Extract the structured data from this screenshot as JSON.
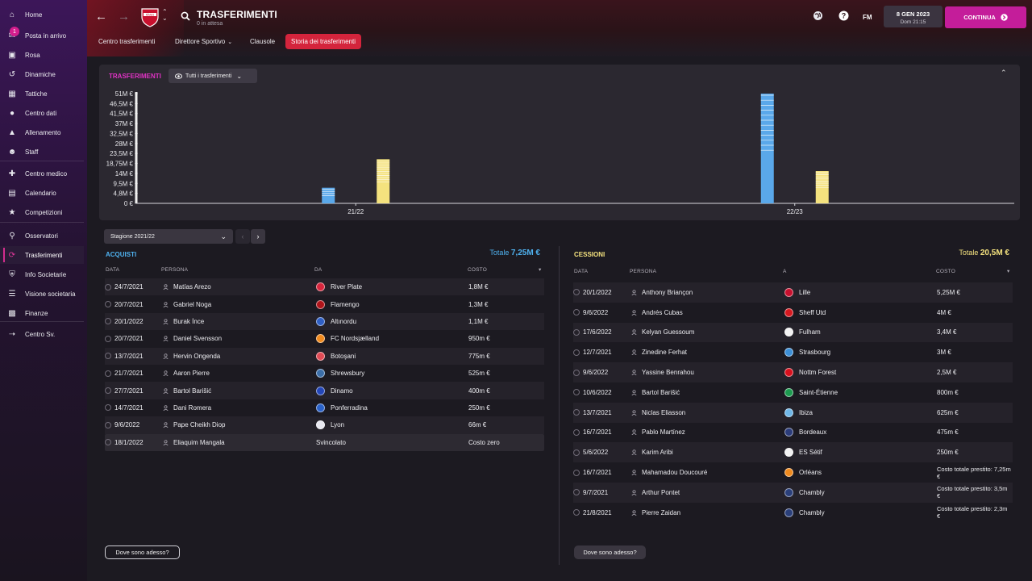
{
  "sidebar": {
    "items": [
      {
        "label": "Home",
        "icon": "home-icon"
      },
      {
        "label": "Posta in arrivo",
        "icon": "inbox-icon",
        "badge": "1"
      },
      {
        "label": "Rosa",
        "icon": "shirt-icon"
      },
      {
        "label": "Dinamiche",
        "icon": "dynamics-icon"
      },
      {
        "label": "Tattiche",
        "icon": "tactics-icon"
      },
      {
        "label": "Centro dati",
        "icon": "data-icon"
      },
      {
        "label": "Allenamento",
        "icon": "training-icon"
      },
      {
        "label": "Staff",
        "icon": "staff-icon"
      },
      {
        "label": "Centro medico",
        "icon": "medical-icon"
      },
      {
        "label": "Calendario",
        "icon": "calendar-icon"
      },
      {
        "label": "Competizioni",
        "icon": "trophy-icon"
      },
      {
        "label": "Osservatori",
        "icon": "scout-icon"
      },
      {
        "label": "Trasferimenti",
        "icon": "transfers-icon"
      },
      {
        "label": "Info Societarie",
        "icon": "club-info-icon"
      },
      {
        "label": "Visione societaria",
        "icon": "vision-icon"
      },
      {
        "label": "Finanze",
        "icon": "finance-icon"
      },
      {
        "label": "Centro Sv.",
        "icon": "development-icon"
      }
    ]
  },
  "header": {
    "crest_text": "NÎMES",
    "title": "TRASFERIMENTI",
    "subtitle": "0 in attesa",
    "tabs": [
      "Centro trasferimenti",
      "Direttore Sportivo",
      "Clausole",
      "Storia dei trasferimenti"
    ],
    "fm_label": "FM",
    "date": "8 GEN 2023",
    "day_time": "Dom 21:15",
    "continue_label": "CONTINUA"
  },
  "chart": {
    "title": "TRASFERIMENTI",
    "filter_label": "Tutti i trasferimenti"
  },
  "chart_data": {
    "type": "bar",
    "categories": [
      "21/22",
      "22/23"
    ],
    "yticks": [
      "0 €",
      "4,8M €",
      "9,5M €",
      "14M €",
      "18,75M €",
      "23,5M €",
      "28M €",
      "32,5M €",
      "37M €",
      "41,5M €",
      "46,5M €",
      "51M €"
    ],
    "ylim": [
      0,
      51
    ],
    "series": [
      {
        "color": "#5aa8ea",
        "values": [
          7.25,
          51
        ]
      },
      {
        "color": "#f4e27e",
        "values": [
          20.5,
          15
        ]
      }
    ]
  },
  "season": {
    "label": "Stagione 2021/22"
  },
  "acquisti": {
    "title": "ACQUISTI",
    "total_label": "Totale",
    "total_value": "7,25M €",
    "headers": [
      "DATA",
      "PERSONA",
      "DA",
      "COSTO"
    ],
    "rows": [
      {
        "date": "24/7/2021",
        "person": "Matías Arezo",
        "club": "River Plate",
        "badge": "#d7263d",
        "cost": "1,8M €"
      },
      {
        "date": "20/7/2021",
        "person": "Gabriel Noga",
        "club": "Flamengo",
        "badge": "#b0141a",
        "cost": "1,3M €"
      },
      {
        "date": "20/1/2022",
        "person": "Burak İnce",
        "club": "Altınordu",
        "badge": "#2f5fc4",
        "cost": "1,1M €"
      },
      {
        "date": "20/7/2021",
        "person": "Daniel Svensson",
        "club": "FC Nordsjælland",
        "badge": "#f08a1e",
        "cost": "950m €"
      },
      {
        "date": "13/7/2021",
        "person": "Hervin Ongenda",
        "club": "Botoşani",
        "badge": "#e04b55",
        "cost": "775m €"
      },
      {
        "date": "21/7/2021",
        "person": "Aaron Pierre",
        "club": "Shrewsbury",
        "badge": "#3b6ea8",
        "cost": "525m €"
      },
      {
        "date": "27/7/2021",
        "person": "Bartol Barišić",
        "club": "Dinamo",
        "badge": "#2346b8",
        "cost": "400m €"
      },
      {
        "date": "14/7/2021",
        "person": "Dani Romera",
        "club": "Ponferradina",
        "badge": "#2a62c9",
        "cost": "250m €"
      },
      {
        "date": "9/6/2022",
        "person": "Pape Cheikh Diop",
        "club": "Lyon",
        "badge": "#e8e8f0",
        "cost": "66m €"
      },
      {
        "date": "18/1/2022",
        "person": "Eliaquim Mangala",
        "club": "Svincolato",
        "badge": "",
        "cost": "Costo zero"
      }
    ],
    "where_label": "Dove sono adesso?"
  },
  "cessioni": {
    "title": "CESSIONI",
    "total_label": "Totale",
    "total_value": "20,5M €",
    "headers": [
      "DATA",
      "PERSONA",
      "A",
      "COSTO"
    ],
    "rows": [
      {
        "date": "20/1/2022",
        "person": "Anthony Briançon",
        "club": "Lille",
        "badge": "#c8102e",
        "cost": "5,25M €"
      },
      {
        "date": "9/6/2022",
        "person": "Andrés Cubas",
        "club": "Sheff Utd",
        "badge": "#d71920",
        "cost": "4M €"
      },
      {
        "date": "17/6/2022",
        "person": "Kelyan Guessoum",
        "club": "Fulham",
        "badge": "#f2f2f2",
        "cost": "3,4M €"
      },
      {
        "date": "12/7/2021",
        "person": "Zinedine Ferhat",
        "club": "Strasbourg",
        "badge": "#3c8fd6",
        "cost": "3M €"
      },
      {
        "date": "9/6/2022",
        "person": "Yassine Benrahou",
        "club": "Nottm Forest",
        "badge": "#d8101d",
        "cost": "2,5M €"
      },
      {
        "date": "10/6/2022",
        "person": "Bartol Barišić",
        "club": "Saint-Étienne",
        "badge": "#1c9a4f",
        "cost": "800m €"
      },
      {
        "date": "13/7/2021",
        "person": "Niclas Eliasson",
        "club": "Ibiza",
        "badge": "#6fb7e8",
        "cost": "625m €"
      },
      {
        "date": "16/7/2021",
        "person": "Pablo Martínez",
        "club": "Bordeaux",
        "badge": "#2b3c7a",
        "cost": "475m €"
      },
      {
        "date": "5/6/2022",
        "person": "Karim Aribi",
        "club": "ES Sétif",
        "badge": "#f1f1f1",
        "cost": "250m €"
      },
      {
        "date": "16/7/2021",
        "person": "Mahamadou Doucouré",
        "club": "Orléans",
        "badge": "#f08a1e",
        "cost": "Costo totale prestito: 7,25m €"
      },
      {
        "date": "9/7/2021",
        "person": "Arthur Pontet",
        "club": "Chambly",
        "badge": "#2a3f7a",
        "cost": "Costo totale prestito: 3,5m €"
      },
      {
        "date": "21/8/2021",
        "person": "Pierre Zaidan",
        "club": "Chambly",
        "badge": "#2a3f7a",
        "cost": "Costo totale prestito: 2,3m €"
      }
    ],
    "where_label": "Dove sono adesso?"
  }
}
